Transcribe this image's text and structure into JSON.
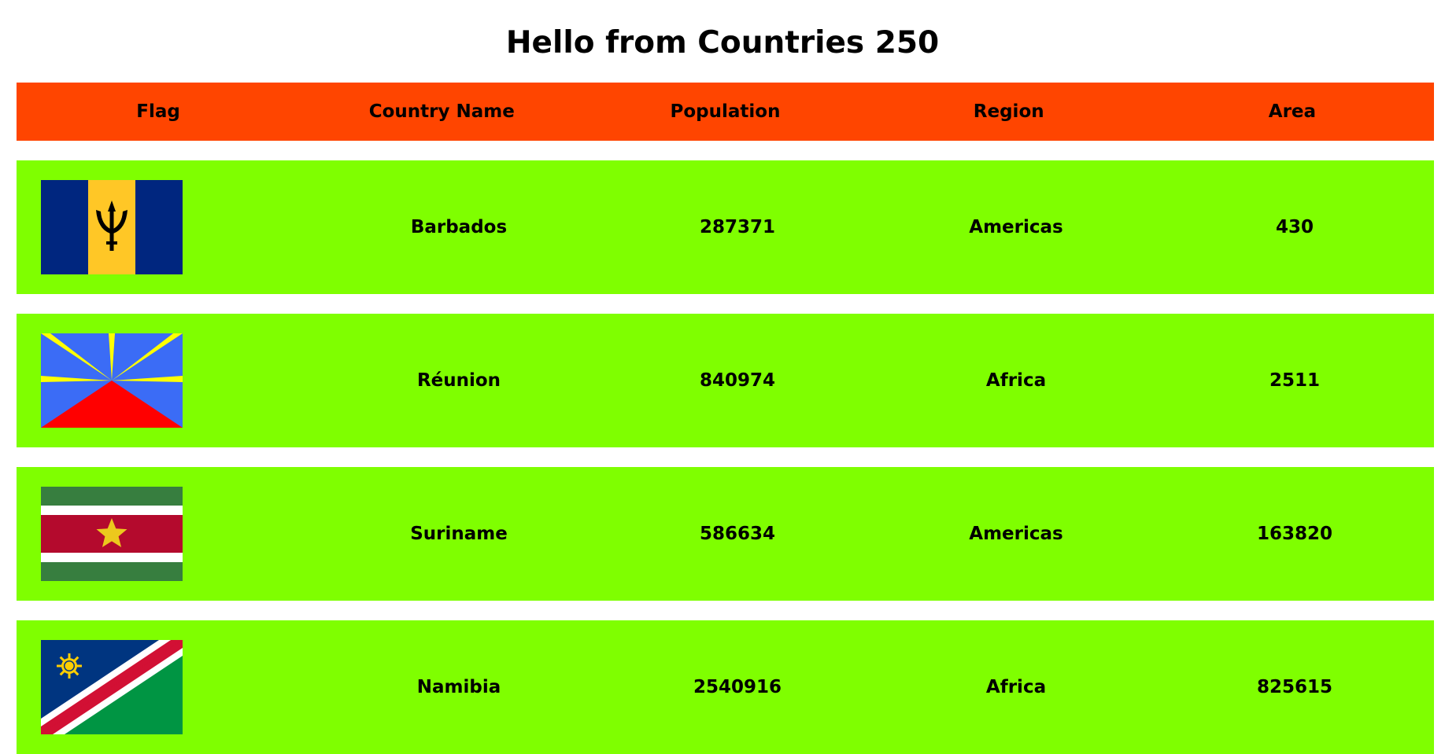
{
  "page": {
    "title": "Hello from Countries 250"
  },
  "table": {
    "headers": [
      "Flag",
      "Country Name",
      "Population",
      "Region",
      "Area"
    ],
    "rows": [
      {
        "flag_icon": "barbados-flag-icon",
        "name": "Barbados",
        "population": "287371",
        "region": "Americas",
        "area": "430"
      },
      {
        "flag_icon": "reunion-flag-icon",
        "name": "Réunion",
        "population": "840974",
        "region": "Africa",
        "area": "2511"
      },
      {
        "flag_icon": "suriname-flag-icon",
        "name": "Suriname",
        "population": "586634",
        "region": "Americas",
        "area": "163820"
      },
      {
        "flag_icon": "namibia-flag-icon",
        "name": "Namibia",
        "population": "2540916",
        "region": "Africa",
        "area": "825615"
      }
    ]
  },
  "colors": {
    "header_bg": "#ff4500",
    "row_bg": "#7fff00"
  }
}
